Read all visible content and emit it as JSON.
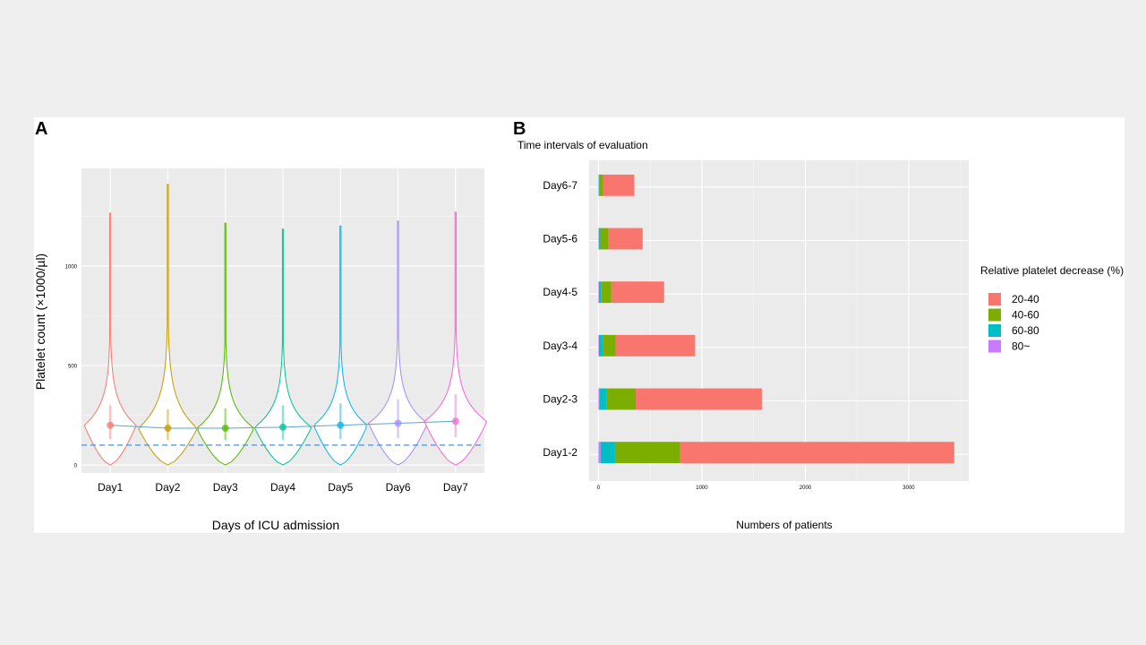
{
  "panel_a_letter": "A",
  "panel_b_letter": "B",
  "colors": {
    "panel_bg": "#ebebeb",
    "grid": "#ffffff",
    "day_colors": [
      "#f8766d",
      "#c49a00",
      "#53b400",
      "#00c094",
      "#00b6eb",
      "#a58aff",
      "#fb61d7"
    ],
    "threshold_line": "#4a90d9",
    "decrease_colors": [
      "#f8766d",
      "#7cae00",
      "#00bfc4",
      "#c77cff"
    ]
  },
  "chart_data": [
    {
      "type": "violin",
      "xlabel": "Days of ICU admission",
      "ylabel": "Platelet count (×1000/µl)",
      "categories": [
        "Day1",
        "Day2",
        "Day3",
        "Day4",
        "Day5",
        "Day6",
        "Day7"
      ],
      "ylim": [
        -40,
        1490
      ],
      "yticks": [
        0,
        500,
        1000
      ],
      "grid": true,
      "threshold": 100,
      "medians": [
        200,
        185,
        185,
        190,
        200,
        210,
        220
      ],
      "q1": [
        130,
        125,
        125,
        125,
        130,
        135,
        140
      ],
      "q3": [
        300,
        280,
        285,
        300,
        310,
        330,
        355
      ],
      "maxima": [
        1265,
        1410,
        1215,
        1185,
        1200,
        1225,
        1270
      ]
    },
    {
      "type": "bar",
      "orientation": "horizontal",
      "stacked": true,
      "title": "Time intervals of evaluation",
      "xlabel": "Numbers of patients",
      "categories": [
        "Day1-2",
        "Day2-3",
        "Day3-4",
        "Day4-5",
        "Day5-6",
        "Day6-7"
      ],
      "xlim": [
        -90,
        3580
      ],
      "xticks": [
        0,
        1000,
        2000,
        3000
      ],
      "grid": true,
      "legend_title": "Relative platelet decrease (%)",
      "legend_position": "right",
      "series": [
        {
          "name": "20-40",
          "values": [
            2650,
            1220,
            770,
            510,
            330,
            300
          ]
        },
        {
          "name": "40-60",
          "values": [
            630,
            280,
            120,
            100,
            80,
            35
          ]
        },
        {
          "name": "60-80",
          "values": [
            140,
            70,
            40,
            20,
            15,
            10
          ]
        },
        {
          "name": "80~",
          "values": [
            20,
            10,
            5,
            5,
            3,
            2
          ]
        }
      ]
    }
  ]
}
